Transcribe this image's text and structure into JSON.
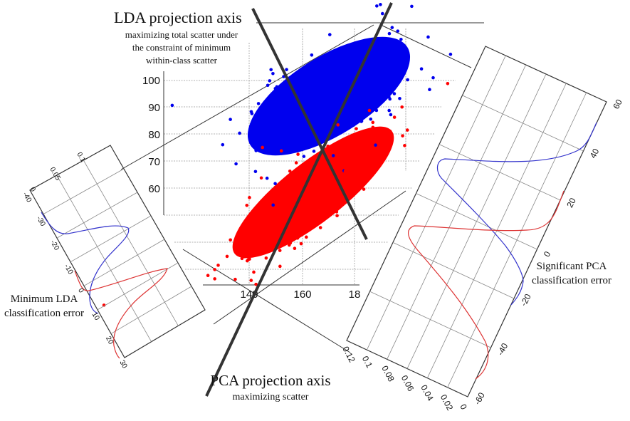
{
  "title": {
    "lda_heading": "LDA projection axis",
    "lda_sub": [
      "maximizing total scatter under",
      "the constraint of minimum",
      "within-class scatter"
    ],
    "pca_heading": "PCA projection axis",
    "pca_sub": "maximizing scatter"
  },
  "scatter": {
    "y_ticks": [
      "100",
      "90",
      "80",
      "70",
      "60"
    ],
    "x_ticks": [
      "140",
      "160",
      "18"
    ],
    "colors": {
      "class1": "#0000ee",
      "class2": "#ff0000"
    }
  },
  "left_panel": {
    "annotation": [
      "Minimum LDA",
      "classification error"
    ],
    "density_ticks": [
      "0",
      "0.05",
      "0.1"
    ],
    "value_ticks": [
      "-40",
      "-30",
      "-20",
      "-10",
      "0",
      "10",
      "20",
      "30"
    ]
  },
  "right_panel": {
    "annotation": [
      "Significant PCA",
      "classification error"
    ],
    "density_ticks": [
      "0.12",
      "0.1",
      "0.08",
      "0.06",
      "0.04",
      "0.02",
      "0"
    ],
    "value_ticks": [
      "60",
      "40",
      "20",
      "0",
      "-20",
      "-40",
      "-60"
    ]
  }
}
